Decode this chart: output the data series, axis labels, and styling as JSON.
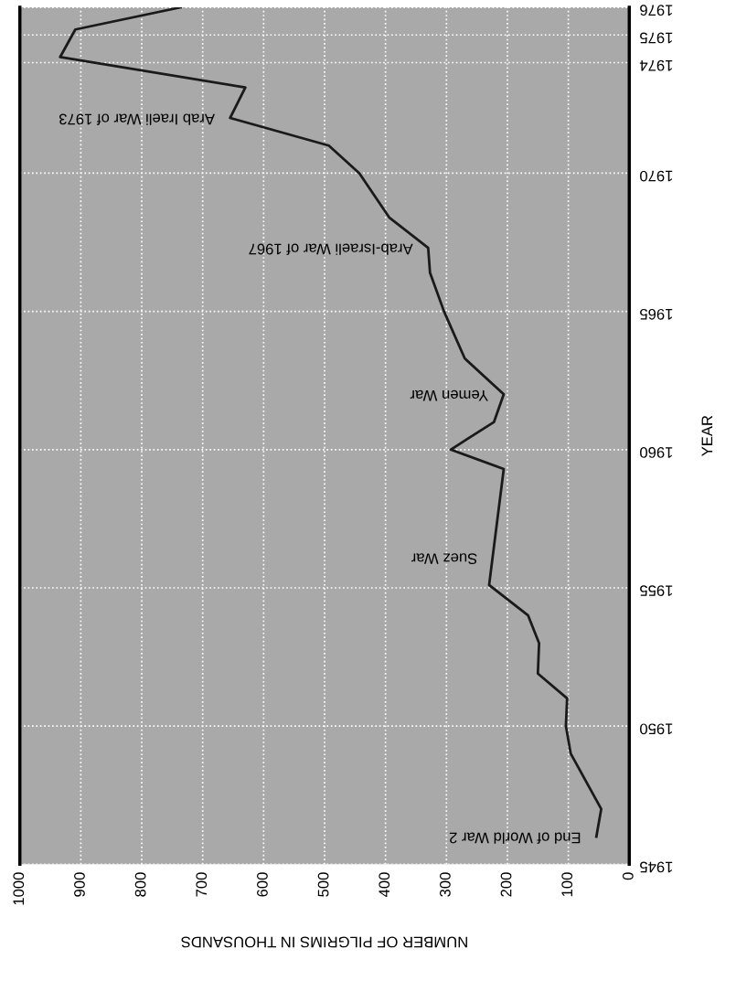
{
  "chart_data": {
    "type": "line",
    "orientation": "horizontal",
    "xlabel": "NUMBER OF PILGRIMS IN THOUSANDS",
    "ylabel": "YEAR",
    "x": [
      1946.0,
      1947.0,
      1949.0,
      1950.0,
      1951.0,
      1951.9,
      1953.0,
      1954.0,
      1955.1,
      1959.3,
      1960.0,
      1961.0,
      1962.0,
      1963.3,
      1965.0,
      1966.4,
      1967.3,
      1968.4,
      1970.0,
      1971.0,
      1972.0,
      1973.1,
      1974.2,
      1975.2,
      1976.0
    ],
    "series": [
      {
        "color": "#1a1a1a",
        "values": [
          54,
          46,
          96,
          104,
          102,
          150,
          148,
          166,
          230,
          206,
          293,
          222,
          206,
          270,
          304,
          327,
          330,
          394,
          443,
          493,
          655,
          630,
          934,
          909,
          736
        ]
      }
    ],
    "xlim": [
      1000,
      0
    ],
    "xticks": [
      1000,
      900,
      800,
      700,
      600,
      500,
      400,
      300,
      200,
      100,
      0
    ],
    "ylim": [
      1945,
      1976
    ],
    "yticks": [
      1945,
      1950,
      1955,
      1960,
      1965,
      1970,
      1974,
      1975,
      1976
    ],
    "grid": true,
    "marker": "none",
    "line_style": "solid",
    "annotations": [
      {
        "text": "End of World War 2",
        "x": 54,
        "y": 1946.0
      },
      {
        "text": "Suez War",
        "x": 224,
        "y": 1956.1
      },
      {
        "text": "Yemen War",
        "x": 206,
        "y": 1962.0
      },
      {
        "text": "Arab-Israeli War of 1967",
        "x": 330,
        "y": 1967.3
      },
      {
        "text": "Arab Iraeli War of 1973",
        "x": 655,
        "y": 1972.0
      }
    ]
  }
}
